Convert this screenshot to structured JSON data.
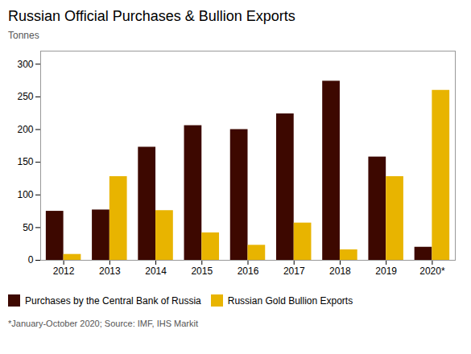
{
  "chart_data": {
    "type": "bar",
    "title": "Russian Official Purchases & Bullion Exports",
    "ylabel": "Tonnes",
    "caption": "*January-October 2020; Source: IMF, IHS Markit",
    "categories": [
      "2012",
      "2013",
      "2014",
      "2015",
      "2016",
      "2017",
      "2018",
      "2019",
      "2020*"
    ],
    "series": [
      {
        "name": "Purchases by the Central Bank of Russia",
        "color": "#3d0800",
        "values": [
          75,
          77,
          173,
          206,
          200,
          224,
          274,
          158,
          20
        ]
      },
      {
        "name": "Russian Gold Bullion Exports",
        "color": "#e8b400",
        "values": [
          9,
          128,
          76,
          42,
          23,
          57,
          16,
          128,
          260
        ]
      }
    ],
    "ylim": [
      0,
      320
    ],
    "yticks": [
      0,
      50,
      100,
      150,
      200,
      250,
      300
    ],
    "grid": false
  }
}
